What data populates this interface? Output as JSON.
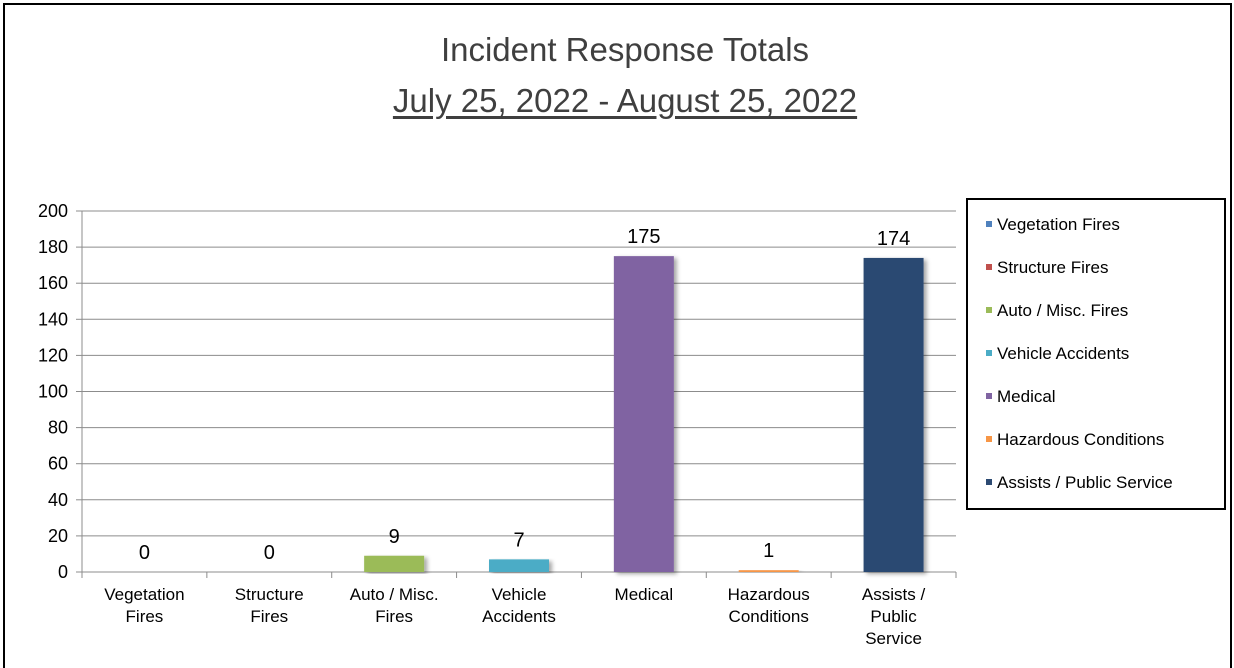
{
  "header": {
    "title": "Incident Response Totals",
    "subtitle": "July 25, 2022 - August 25, 2022"
  },
  "chart_data": {
    "type": "bar",
    "title": "Incident Response Totals",
    "subtitle": "July 25, 2022 - August 25, 2022",
    "categories": [
      [
        "Vegetation",
        "Fires"
      ],
      [
        "Structure",
        "Fires"
      ],
      [
        "Auto / Misc.",
        "Fires"
      ],
      [
        "Vehicle",
        "Accidents"
      ],
      [
        "Medical"
      ],
      [
        "Hazardous",
        "Conditions"
      ],
      [
        "Assists /",
        "Public",
        "Service"
      ]
    ],
    "values": [
      0,
      0,
      9,
      7,
      175,
      1,
      174
    ],
    "data_labels": [
      "0",
      "0",
      "9",
      "7",
      "175",
      "1",
      "174"
    ],
    "colors": [
      "#4f81bd",
      "#c0504d",
      "#9bbb59",
      "#4bacc6",
      "#8064a2",
      "#f79646",
      "#2c4a72"
    ],
    "ylim": [
      0,
      200
    ],
    "yticks": [
      0,
      20,
      40,
      60,
      80,
      100,
      120,
      140,
      160,
      180,
      200
    ],
    "grid": true,
    "legend_position": "right",
    "legend": [
      "Vegetation Fires",
      "Structure Fires",
      "Auto / Misc. Fires",
      "Vehicle Accidents",
      "Medical",
      "Hazardous Conditions",
      "Assists / Public Service"
    ]
  }
}
